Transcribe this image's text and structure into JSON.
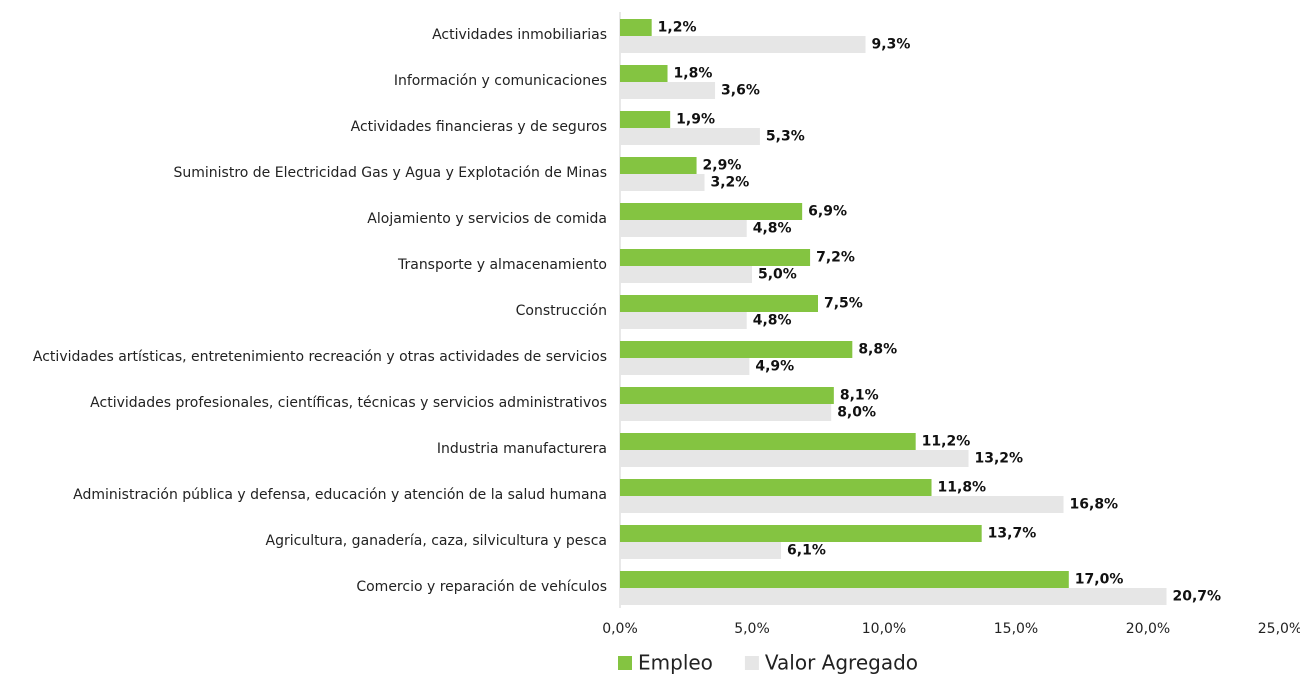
{
  "chart_data": {
    "type": "barh",
    "categories": [
      "Actividades inmobiliarias",
      "Información y comunicaciones",
      "Actividades financieras y de seguros",
      "Suministro de Electricidad Gas y Agua y Explotación de Minas",
      "Alojamiento y servicios de comida",
      "Transporte y almacenamiento",
      "Construcción",
      "Actividades artísticas, entretenimiento recreación y otras actividades de servicios",
      "Actividades profesionales, científicas, técnicas y servicios administrativos",
      "Industria manufacturera",
      "Administración pública y defensa, educación y atención de la salud humana",
      "Agricultura, ganadería, caza, silvicultura y pesca",
      "Comercio y reparación de vehículos"
    ],
    "series": [
      {
        "name": "Empleo",
        "color": "#84c441",
        "values": [
          1.2,
          1.8,
          1.9,
          2.9,
          6.9,
          7.2,
          7.5,
          8.8,
          8.1,
          11.2,
          11.8,
          13.7,
          17.0
        ],
        "value_labels": [
          "1,2%",
          "1,8%",
          "1,9%",
          "2,9%",
          "6,9%",
          "7,2%",
          "7,5%",
          "8,8%",
          "8,1%",
          "11,2%",
          "11,8%",
          "13,7%",
          "17,0%"
        ]
      },
      {
        "name": "Valor Agregado",
        "color": "#e6e6e6",
        "values": [
          9.3,
          3.6,
          5.3,
          3.2,
          4.8,
          5.0,
          4.8,
          4.9,
          8.0,
          13.2,
          16.8,
          6.1,
          20.7
        ],
        "value_labels": [
          "9,3%",
          "3,6%",
          "5,3%",
          "3,2%",
          "4,8%",
          "5,0%",
          "4,8%",
          "4,9%",
          "8,0%",
          "13,2%",
          "16,8%",
          "6,1%",
          "20,7%"
        ]
      }
    ],
    "xlim": [
      0,
      25
    ],
    "xticks": [
      {
        "value": 0,
        "label": "0,0%"
      },
      {
        "value": 5,
        "label": "5,0%"
      },
      {
        "value": 10,
        "label": "10,0%"
      },
      {
        "value": 15,
        "label": "15,0%"
      },
      {
        "value": 20,
        "label": "20,0%"
      },
      {
        "value": 25,
        "label": "25,0%"
      }
    ],
    "legend": "bottom"
  }
}
